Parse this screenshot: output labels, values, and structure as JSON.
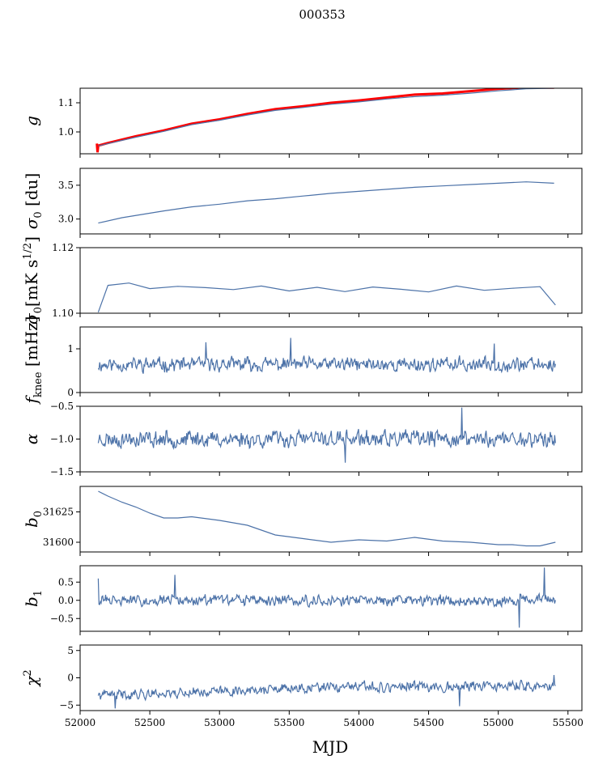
{
  "figure": {
    "title": "000353",
    "xlabel": "MJD"
  },
  "chart_data": {
    "type": "line",
    "x_range": [
      52000,
      55600
    ],
    "x_ticks": [
      52000,
      52500,
      53000,
      53500,
      54000,
      54500,
      55000,
      55500
    ],
    "x_tick_labels": [
      "52000",
      "52500",
      "53000",
      "53500",
      "54000",
      "54500",
      "55000",
      "55500"
    ],
    "x_start": 52130,
    "x_end": 55410,
    "panels": [
      {
        "ylabel": "g",
        "ylim": [
          0.925,
          1.15
        ],
        "yticks": [
          1.0,
          1.1
        ],
        "ytick_labels": [
          "1.0",
          "1.1"
        ],
        "series": [
          {
            "color": "#ff0000",
            "style": "thick",
            "x": [
              52120,
              52125,
              52130,
              52200,
              52400,
              52600,
              52800,
              53000,
              53200,
              53400,
              53600,
              53800,
              54000,
              54200,
              54400,
              54600,
              54800,
              55000,
              55200,
              55400
            ],
            "values": [
              0.96,
              0.93,
              0.953,
              0.962,
              0.985,
              1.005,
              1.028,
              1.043,
              1.062,
              1.078,
              1.088,
              1.1,
              1.108,
              1.118,
              1.128,
              1.132,
              1.14,
              1.148,
              1.153,
              1.152
            ]
          },
          {
            "color": "#4c72a8",
            "style": "thin",
            "x": [
              52130,
              52200,
              52400,
              52600,
              52800,
              53000,
              53200,
              53400,
              53600,
              53800,
              54000,
              54200,
              54400,
              54600,
              54800,
              55000,
              55200,
              55400
            ],
            "values": [
              0.952,
              0.96,
              0.982,
              1.002,
              1.025,
              1.04,
              1.058,
              1.074,
              1.084,
              1.095,
              1.103,
              1.113,
              1.121,
              1.126,
              1.133,
              1.141,
              1.148,
              1.15
            ]
          }
        ]
      },
      {
        "ylabel": "σ0 [du]",
        "ylim": [
          2.78,
          3.75
        ],
        "yticks": [
          3.0,
          3.5
        ],
        "ytick_labels": [
          "3.0",
          "3.5"
        ],
        "series": [
          {
            "color": "#4c72a8",
            "style": "thin",
            "x": [
              52130,
              52300,
              52600,
              52800,
              53000,
              53200,
              53400,
              53600,
              53800,
              54000,
              54200,
              54400,
              54600,
              54800,
              55000,
              55200,
              55400
            ],
            "values": [
              2.94,
              3.02,
              3.12,
              3.18,
              3.22,
              3.27,
              3.3,
              3.34,
              3.38,
              3.41,
              3.44,
              3.47,
              3.49,
              3.51,
              3.53,
              3.55,
              3.53
            ]
          }
        ]
      },
      {
        "ylabel": "σ0[mK s^1/2]",
        "ylim": [
          1.1,
          1.12
        ],
        "yticks": [
          1.1,
          1.12
        ],
        "ytick_labels": [
          "1.10",
          "1.12"
        ],
        "noise": {
          "base": 1.1133,
          "amp": 0.0018,
          "seed": 7
        },
        "series": [
          {
            "color": "#4c72a8",
            "style": "thin",
            "x": [
              52130,
              52200,
              52350,
              52500,
              52700,
              52900,
              53100,
              53300,
              53500,
              53700,
              53900,
              54100,
              54300,
              54500,
              54700,
              54900,
              55100,
              55300,
              55410
            ],
            "values": [
              1.1003,
              1.1085,
              1.1092,
              1.1075,
              1.1082,
              1.1078,
              1.1072,
              1.1083,
              1.1068,
              1.1079,
              1.1066,
              1.108,
              1.1073,
              1.1065,
              1.1083,
              1.107,
              1.1076,
              1.1081,
              1.1025
            ]
          }
        ]
      },
      {
        "ylabel": "fknee [mHz]",
        "ylim": [
          0,
          1.5
        ],
        "yticks": [
          0,
          1
        ],
        "ytick_labels": [
          "0",
          "1"
        ],
        "noise": {
          "base": 0.64,
          "amp": 0.14,
          "seed": 11,
          "spikes": [
            [
              52900,
              1.15
            ],
            [
              53510,
              1.25
            ],
            [
              54970,
              1.12
            ]
          ]
        },
        "series": [
          {
            "color": "#4c72a8",
            "style": "thin"
          }
        ]
      },
      {
        "ylabel": "α",
        "ylim": [
          -1.5,
          -0.5
        ],
        "yticks": [
          -1.5,
          -1.0,
          -0.5
        ],
        "ytick_labels": [
          "−1.5",
          "−1.0",
          "−0.5"
        ],
        "noise": {
          "base": -1.0,
          "amp": 0.11,
          "seed": 23,
          "spikes": [
            [
              54740,
              -0.52
            ],
            [
              53900,
              -1.36
            ]
          ]
        },
        "series": [
          {
            "color": "#4c72a8",
            "style": "thin"
          }
        ]
      },
      {
        "ylabel": "b0",
        "ylim": [
          31592,
          31646
        ],
        "yticks": [
          31600,
          31625
        ],
        "ytick_labels": [
          "31600",
          "31625"
        ],
        "series": [
          {
            "color": "#4c72a8",
            "style": "thin",
            "x": [
              52130,
              52200,
              52300,
              52400,
              52500,
              52600,
              52700,
              52800,
              53000,
              53200,
              53400,
              53600,
              53800,
              54000,
              54200,
              54400,
              54600,
              54800,
              55000,
              55100,
              55200,
              55300,
              55410
            ],
            "values": [
              31642,
              31638,
              31633,
              31629,
              31624,
              31620,
              31620,
              31621,
              31618,
              31614,
              31606,
              31603,
              31600,
              31602,
              31601,
              31604,
              31601,
              31600,
              31598,
              31598,
              31597,
              31597,
              31600
            ]
          }
        ]
      },
      {
        "ylabel": "b1",
        "ylim": [
          -0.85,
          0.95
        ],
        "yticks": [
          -0.5,
          0.0,
          0.5
        ],
        "ytick_labels": [
          "−0.5",
          "0.0",
          "0.5"
        ],
        "noise": {
          "base": 0.0,
          "amp": 0.13,
          "seed": 31,
          "spikes": [
            [
              52130,
              0.6
            ],
            [
              52680,
              0.7
            ],
            [
              55150,
              -0.75
            ],
            [
              55330,
              0.9
            ]
          ]
        },
        "series": [
          {
            "color": "#4c72a8",
            "style": "thin"
          }
        ]
      },
      {
        "ylabel": "χ²",
        "ylim": [
          -6,
          6
        ],
        "yticks": [
          -5,
          0,
          5
        ],
        "ytick_labels": [
          "−5",
          "0",
          "5"
        ],
        "noise": {
          "trend": [
            [
              52130,
              -3.2
            ],
            [
              52600,
              -2.8
            ],
            [
              53200,
              -2.3
            ],
            [
              53800,
              -1.8
            ],
            [
              54500,
              -1.6
            ],
            [
              55410,
              -1.5
            ]
          ],
          "amp": 0.8,
          "seed": 41,
          "spikes": [
            [
              52250,
              -5.6
            ],
            [
              54720,
              -5.2
            ],
            [
              55400,
              0.5
            ]
          ]
        },
        "series": [
          {
            "color": "#4c72a8",
            "style": "thin"
          }
        ]
      }
    ]
  }
}
